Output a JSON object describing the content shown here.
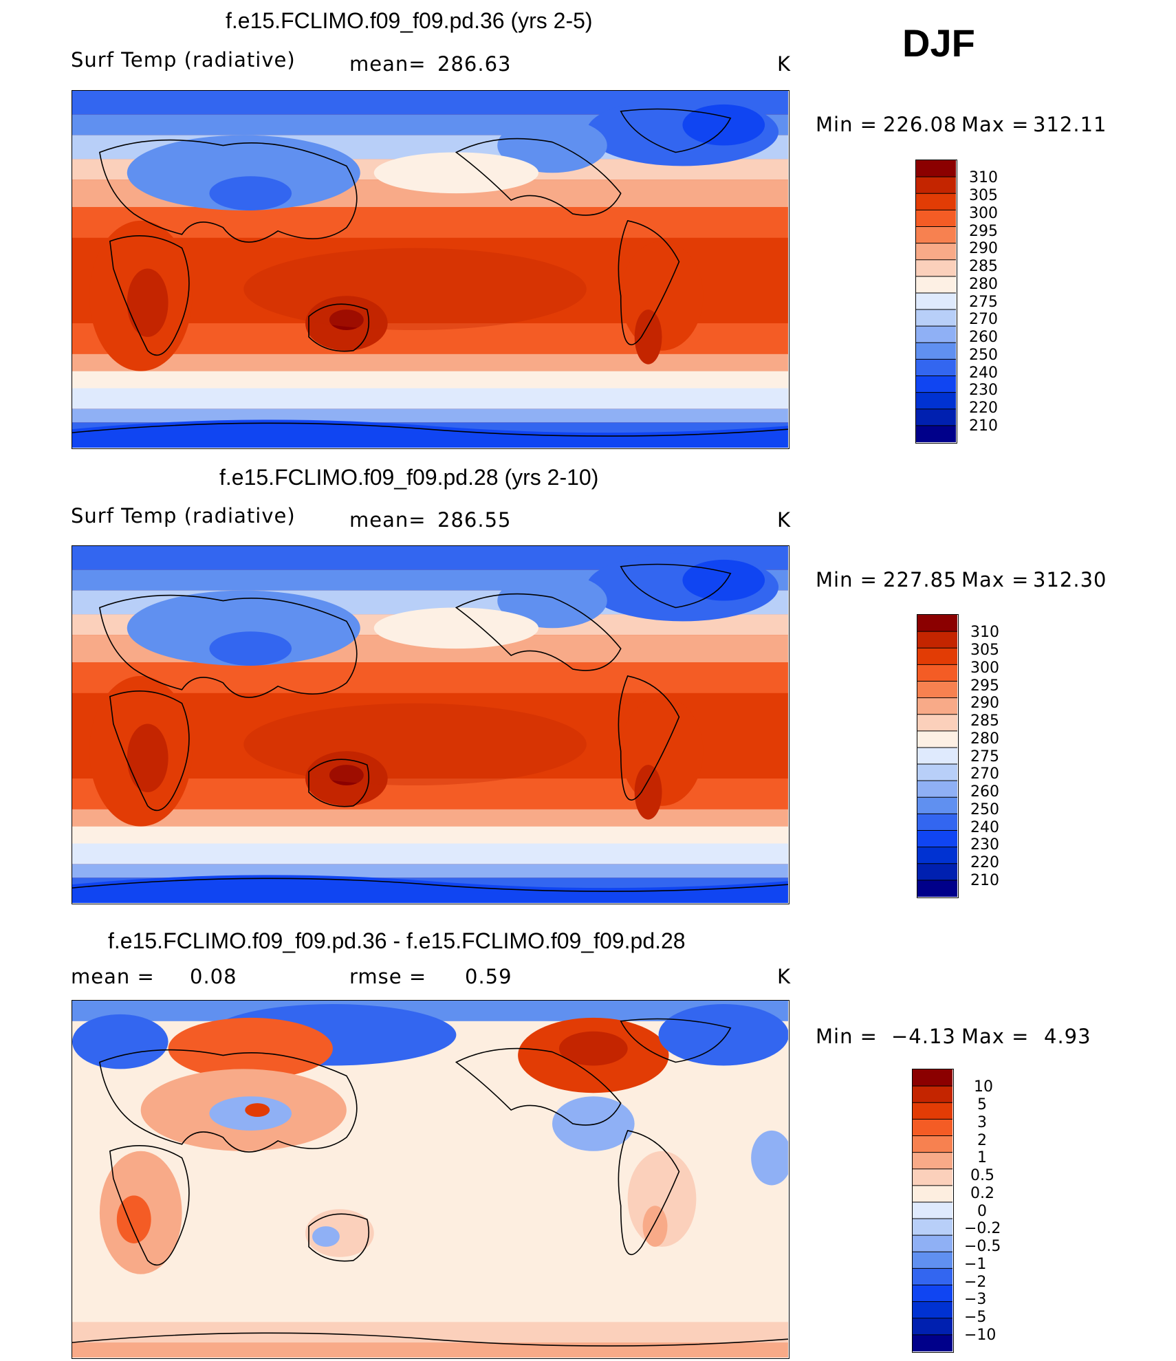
{
  "season": "DJF",
  "colors": {
    "abs": [
      "#00008a",
      "#0020b0",
      "#0032d2",
      "#1045f2",
      "#3366f0",
      "#6090f0",
      "#8fb0f5",
      "#b8cff8",
      "#dfeafd",
      "#fdf0e4",
      "#fbd0bb",
      "#f8aa88",
      "#f78150",
      "#f45c25",
      "#e23c05",
      "#c42500",
      "#8b0000"
    ],
    "diff": [
      "#00008a",
      "#0020b0",
      "#0032d2",
      "#1045f2",
      "#3366f0",
      "#6090f0",
      "#8fb0f5",
      "#b8cff8",
      "#dfeafd",
      "#fdeee0",
      "#fbd0bb",
      "#f8aa88",
      "#f78150",
      "#f45c25",
      "#e23c05",
      "#c42500",
      "#8b0000"
    ],
    "diff_bg": "#fdeee0"
  },
  "panels": [
    {
      "title": "f.e15.FCLIMO.f09_f09.pd.36 (yrs 2-5)",
      "left_label": "Surf Temp (radiative)",
      "stat_label": "mean=",
      "stat_value": "286.63",
      "units": "K",
      "min_label": "Min =",
      "min_value": "226.08",
      "max_label": "Max =",
      "max_value": "312.11",
      "levels": [
        "310",
        "305",
        "300",
        "295",
        "290",
        "285",
        "280",
        "275",
        "270",
        "260",
        "250",
        "240",
        "230",
        "220",
        "210"
      ]
    },
    {
      "title": "f.e15.FCLIMO.f09_f09.pd.28 (yrs 2-10)",
      "left_label": "Surf Temp (radiative)",
      "stat_label": "mean=",
      "stat_value": "286.55",
      "units": "K",
      "min_label": "Min =",
      "min_value": "227.85",
      "max_label": "Max =",
      "max_value": "312.30",
      "levels": [
        "310",
        "305",
        "300",
        "295",
        "290",
        "285",
        "280",
        "275",
        "270",
        "260",
        "250",
        "240",
        "230",
        "220",
        "210"
      ]
    },
    {
      "title": "f.e15.FCLIMO.f09_f09.pd.36 - f.e15.FCLIMO.f09_f09.pd.28",
      "left_label": "mean =",
      "left_value": "0.08",
      "stat_label": "rmse =",
      "stat_value": "0.59",
      "units": "K",
      "min_label": "Min =",
      "min_value": "−4.13",
      "max_label": "Max =",
      "max_value": "4.93",
      "levels": [
        "10",
        "5",
        "3",
        "2",
        "1",
        "0.5",
        "0.2",
        "0",
        "−0.2",
        "−0.5",
        "−1",
        "−2",
        "−3",
        "−5",
        "−10"
      ]
    }
  ]
}
